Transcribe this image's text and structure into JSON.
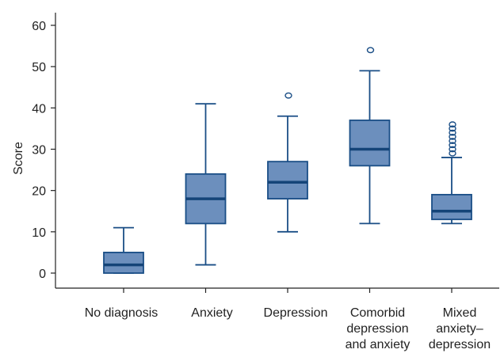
{
  "chart_data": {
    "type": "boxplot",
    "title": "",
    "xlabel": "",
    "ylabel": "Score",
    "ylim": [
      -3,
      64
    ],
    "yticks": [
      0,
      10,
      20,
      30,
      40,
      50,
      60
    ],
    "grid": false,
    "colors": {
      "box_fill": "#6c8fbd",
      "line": "#1a4e86"
    },
    "categories": [
      {
        "label_lines": [
          "No diagnosis"
        ],
        "whisker_low": 0,
        "q1": 0,
        "median": 2,
        "q3": 5,
        "whisker_high": 11,
        "outliers": []
      },
      {
        "label_lines": [
          "Anxiety"
        ],
        "whisker_low": 2,
        "q1": 12,
        "median": 18,
        "q3": 24,
        "whisker_high": 41,
        "outliers": []
      },
      {
        "label_lines": [
          "Depression"
        ],
        "whisker_low": 10,
        "q1": 18,
        "median": 22,
        "q3": 27,
        "whisker_high": 38,
        "outliers": [
          43
        ]
      },
      {
        "label_lines": [
          "Comorbid",
          "depression",
          "and anxiety"
        ],
        "whisker_low": 12,
        "q1": 26,
        "median": 30,
        "q3": 37,
        "whisker_high": 49,
        "outliers": [
          54
        ]
      },
      {
        "label_lines": [
          "Mixed",
          "anxiety–",
          "depression"
        ],
        "whisker_low": 12,
        "q1": 13,
        "median": 15,
        "q3": 19,
        "whisker_high": 28,
        "outliers": [
          29,
          30,
          31,
          32,
          33,
          34,
          35,
          36
        ]
      }
    ]
  }
}
